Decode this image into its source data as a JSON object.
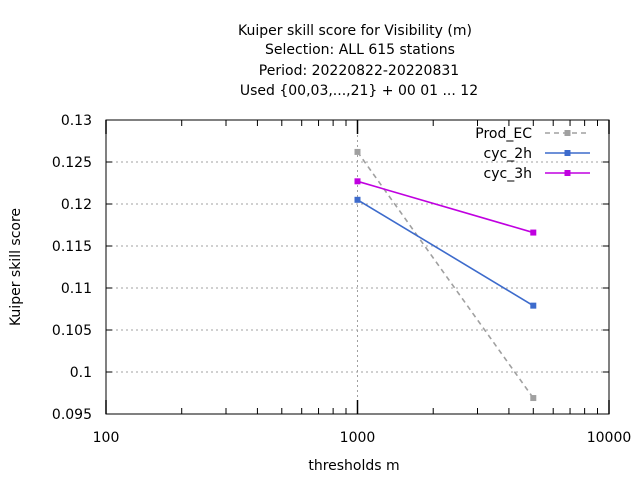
{
  "chart_data": {
    "type": "line",
    "title_lines": [
      "Kuiper skill score  for Visibility (m)",
      "Selection: ALL    615 stations",
      "Period: 20220822-20220831",
      "Used {00,03,...,21} + 00 01 ... 12"
    ],
    "xlabel": "thresholds m",
    "ylabel": "Kuiper skill score",
    "x_scale": "log",
    "xlim": [
      100,
      10000
    ],
    "ylim": [
      0.095,
      0.13
    ],
    "x_ticks": [
      100,
      1000,
      10000
    ],
    "x_tick_labels": [
      "100",
      "1000",
      "10000"
    ],
    "y_ticks": [
      0.095,
      0.1,
      0.105,
      0.11,
      0.115,
      0.12,
      0.125,
      0.13
    ],
    "y_tick_labels": [
      "0.095",
      "0.1",
      "0.105",
      "0.11",
      "0.115",
      "0.12",
      "0.125",
      "0.13"
    ],
    "grid": true,
    "legend_position": "top-right",
    "series": [
      {
        "name": "Prod_EC",
        "color": "#a0a0a0",
        "dashed": true,
        "x": [
          1000,
          5000
        ],
        "y": [
          0.1262,
          0.0969
        ]
      },
      {
        "name": "cyc_2h",
        "color": "#3d6bcc",
        "dashed": false,
        "x": [
          1000,
          5000
        ],
        "y": [
          0.1205,
          0.1079
        ]
      },
      {
        "name": "cyc_3h",
        "color": "#c000e0",
        "dashed": false,
        "x": [
          1000,
          5000
        ],
        "y": [
          0.1227,
          0.1166
        ]
      }
    ]
  }
}
